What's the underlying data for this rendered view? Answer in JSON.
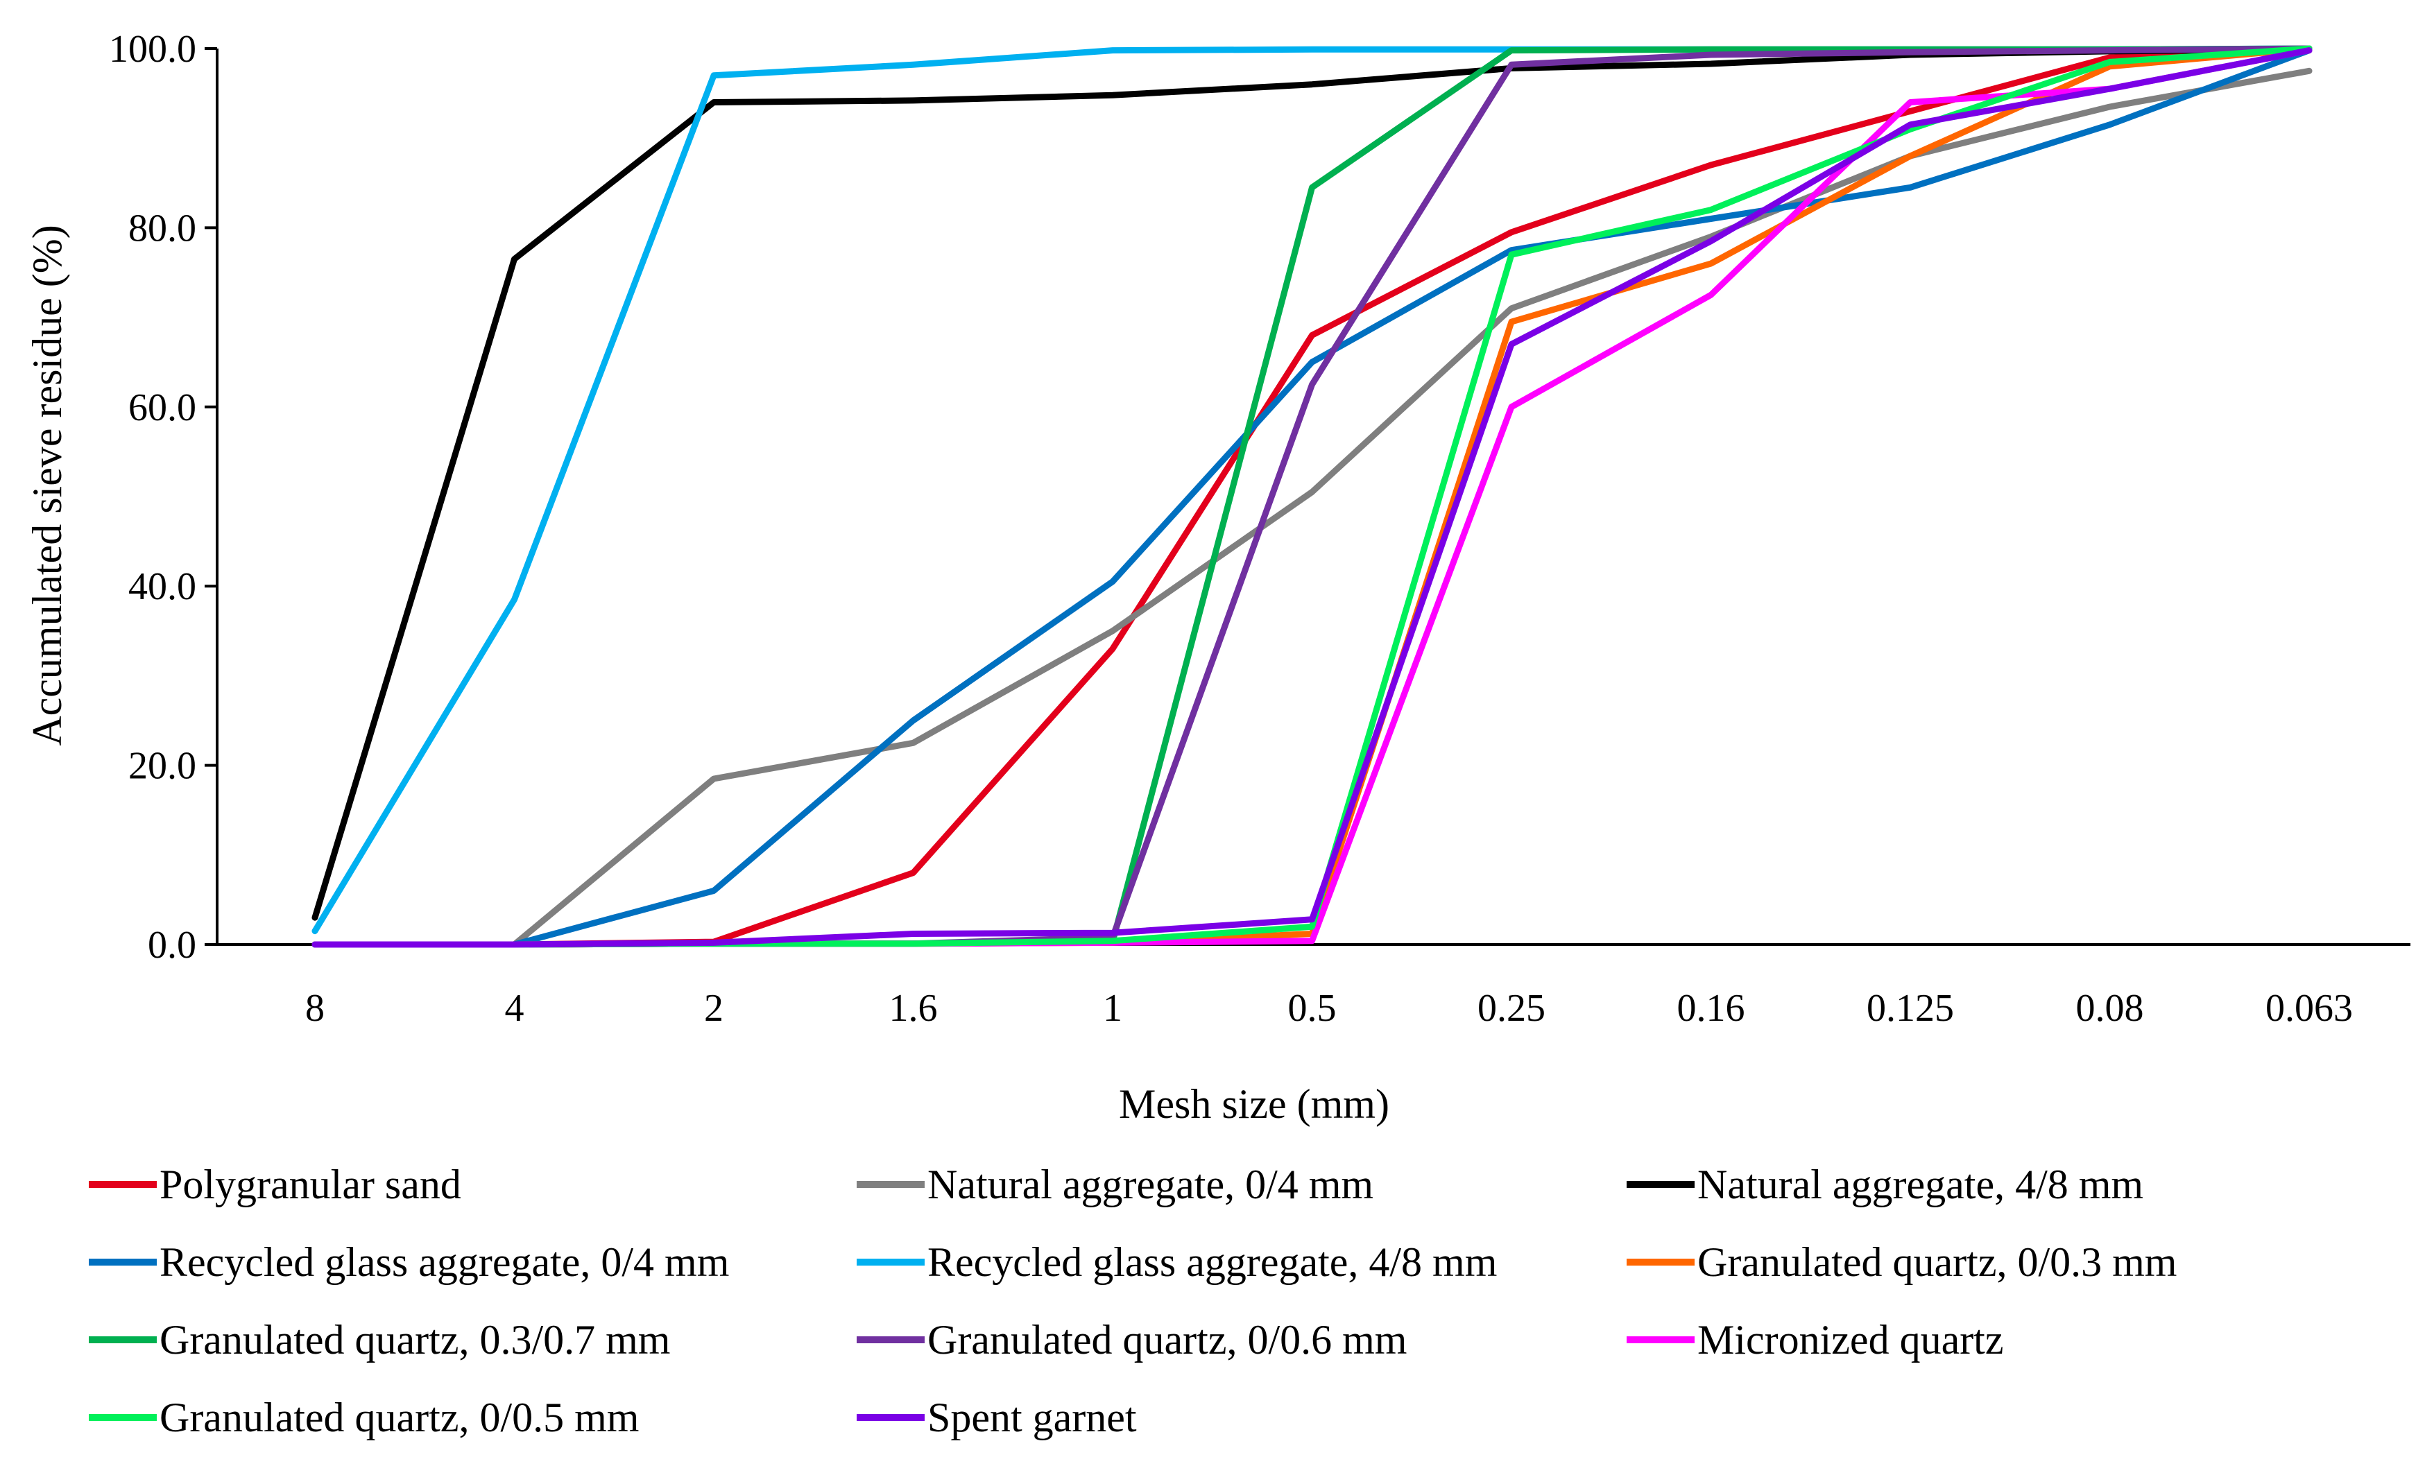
{
  "chart_data": {
    "type": "line",
    "title": "",
    "xlabel": "Mesh size (mm)",
    "ylabel": "Accumulated sieve residue (%)",
    "ylim": [
      0,
      100
    ],
    "yticks": [
      "0.0",
      "20.0",
      "40.0",
      "60.0",
      "80.0",
      "100.0"
    ],
    "ytick_values": [
      0,
      20,
      40,
      60,
      80,
      100
    ],
    "categories": [
      "8",
      "4",
      "2",
      "1.6",
      "1",
      "0.5",
      "0.25",
      "0.16",
      "0.125",
      "0.08",
      "0.063"
    ],
    "legend_position": "bottom",
    "series": [
      {
        "name": "Polygranular sand",
        "color": "#e3001b",
        "values": [
          0,
          0,
          0.3,
          8,
          33,
          68,
          79.5,
          87,
          93,
          99,
          99.8
        ]
      },
      {
        "name": "Natural aggregate, 0/4 mm",
        "color": "#7f7f7f",
        "values": [
          0,
          0,
          18.5,
          22.5,
          35,
          50.5,
          71,
          79,
          88,
          93.5,
          97.5
        ]
      },
      {
        "name": "Natural aggregate, 4/8 mm",
        "color": "#000000",
        "values": [
          3,
          76.5,
          94,
          94.2,
          94.8,
          96,
          97.8,
          98.3,
          99.3,
          99.7,
          99.9
        ]
      },
      {
        "name": "Recycled glass aggregate, 0/4 mm",
        "color": "#0070c0",
        "values": [
          0,
          0,
          6,
          25,
          40.5,
          65,
          77.5,
          81,
          84.5,
          91.5,
          99.8
        ]
      },
      {
        "name": "Recycled glass aggregate, 4/8 mm",
        "color": "#00b0f0",
        "values": [
          1.5,
          38.5,
          97,
          98.2,
          99.8,
          99.9,
          99.9,
          99.9,
          99.9,
          99.9,
          100
        ]
      },
      {
        "name": "Granulated quartz, 0/0.3 mm",
        "color": "#ff6600",
        "values": [
          0,
          0,
          0.1,
          0.1,
          0.2,
          1.2,
          69.5,
          76,
          88,
          98,
          100
        ]
      },
      {
        "name": "Granulated quartz, 0.3/0.7 mm",
        "color": "#00b050",
        "values": [
          0,
          0,
          0.1,
          0.1,
          0.3,
          84.5,
          99.8,
          99.9,
          99.9,
          99.9,
          100
        ]
      },
      {
        "name": "Granulated quartz, 0/0.6 mm",
        "color": "#7030a0",
        "values": [
          0,
          0,
          0.1,
          0.1,
          0.8,
          62.5,
          98.2,
          99.3,
          99.6,
          99.8,
          100
        ]
      },
      {
        "name": "Micronized quartz",
        "color": "#ff00ff",
        "values": [
          0,
          0,
          0.1,
          0.1,
          0.2,
          0.4,
          60,
          72.5,
          94,
          95.5,
          99.8
        ]
      },
      {
        "name": "Granulated quartz, 0/0.5 mm",
        "color": "#00f05a",
        "values": [
          0,
          0,
          0.1,
          0.1,
          0.4,
          2,
          77,
          82,
          91,
          98.5,
          100
        ]
      },
      {
        "name": "Spent garnet",
        "color": "#7a00e6",
        "values": [
          0,
          0,
          0.2,
          1.2,
          1.3,
          2.8,
          67,
          78.5,
          91.5,
          95.5,
          99.8
        ]
      }
    ]
  }
}
